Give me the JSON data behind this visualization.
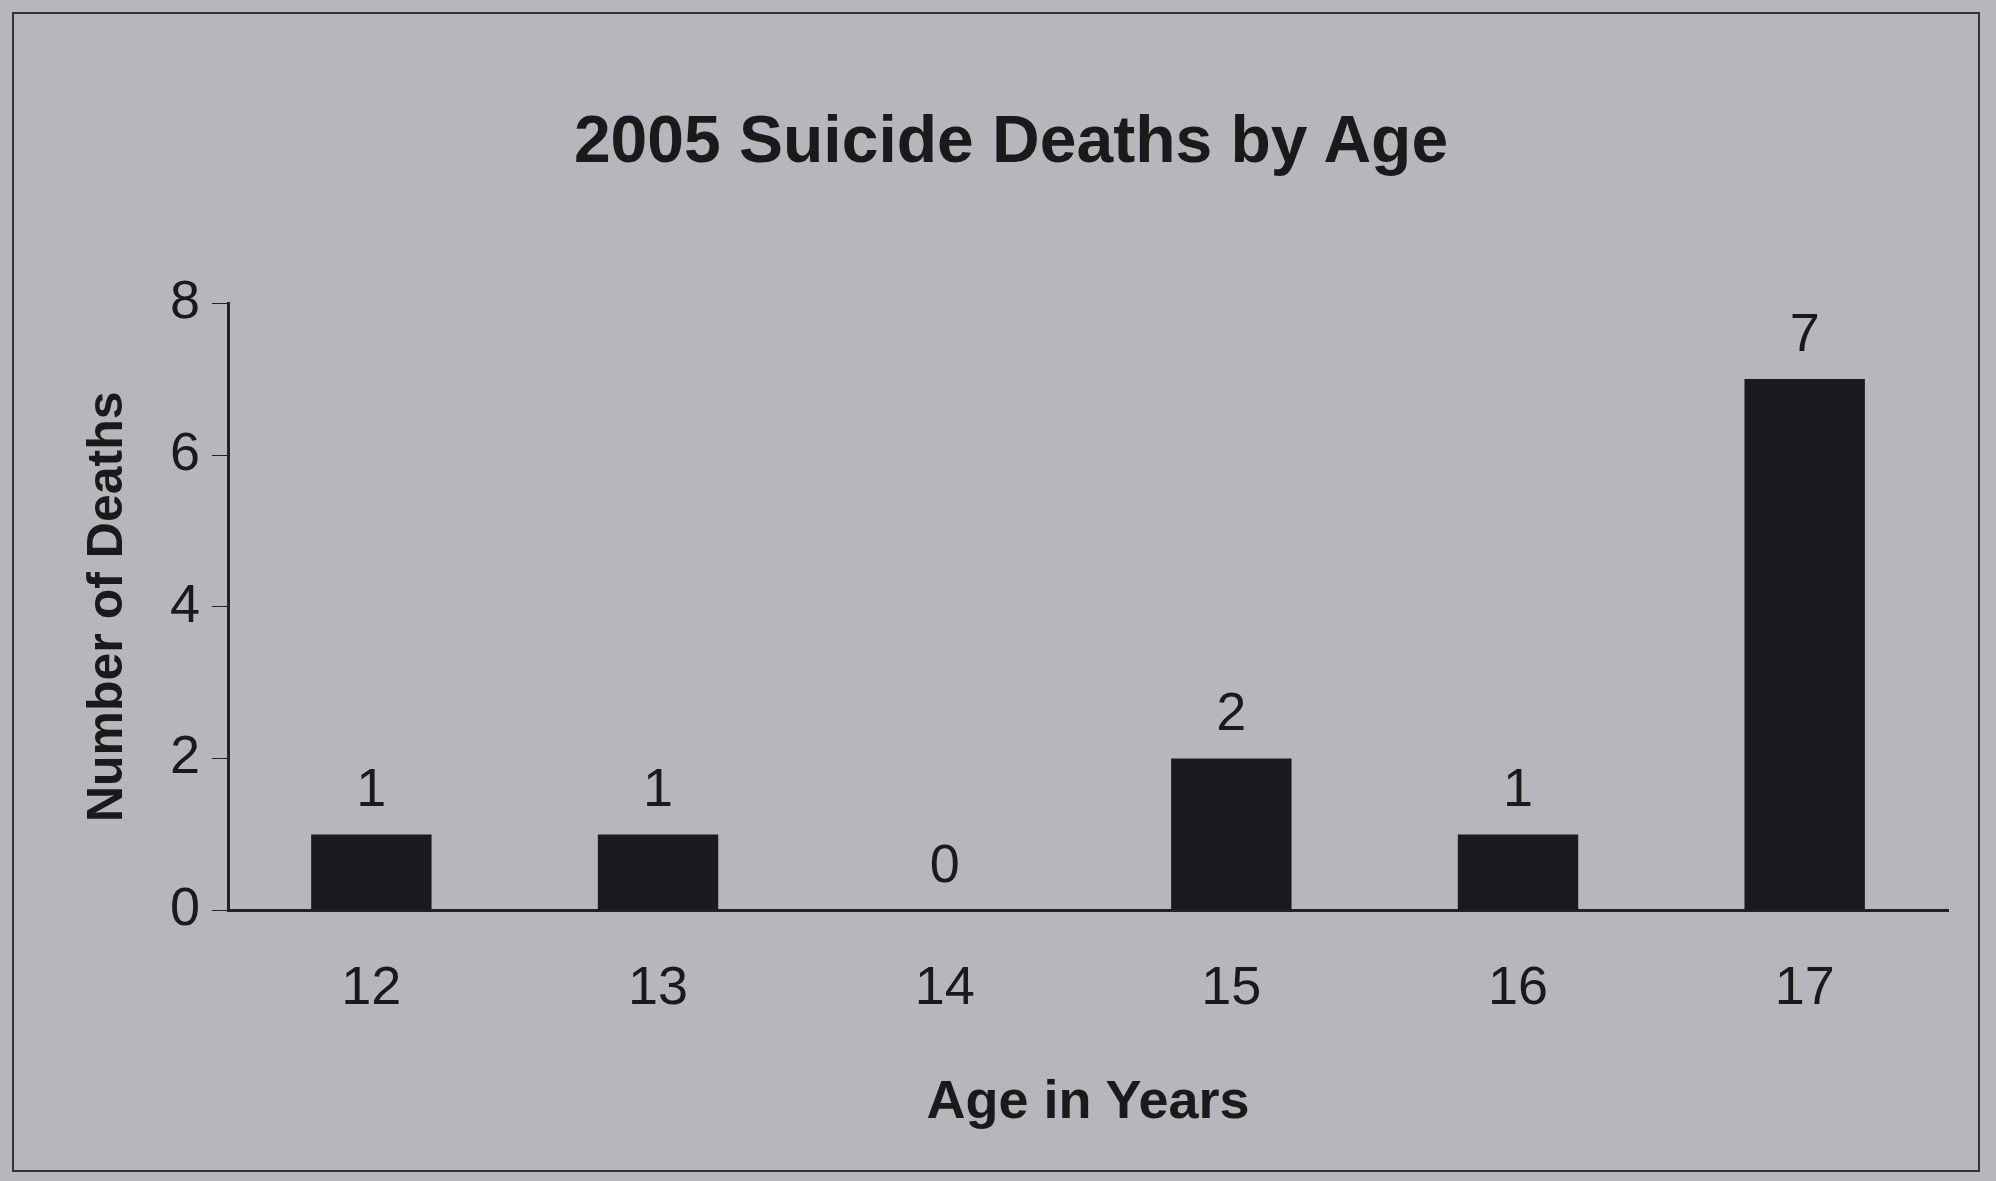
{
  "chart_data": {
    "type": "bar",
    "title": "2005 Suicide Deaths by Age",
    "xlabel": "Age in Years",
    "ylabel": "Number of Deaths",
    "categories": [
      "12",
      "13",
      "14",
      "15",
      "16",
      "17"
    ],
    "values": [
      1,
      1,
      0,
      2,
      1,
      7
    ],
    "color": "#1c1a1e",
    "ylim": [
      0,
      8
    ],
    "yticks": [
      0,
      2,
      4,
      6,
      8
    ],
    "grid": false,
    "legend": false,
    "data_labels": true
  }
}
